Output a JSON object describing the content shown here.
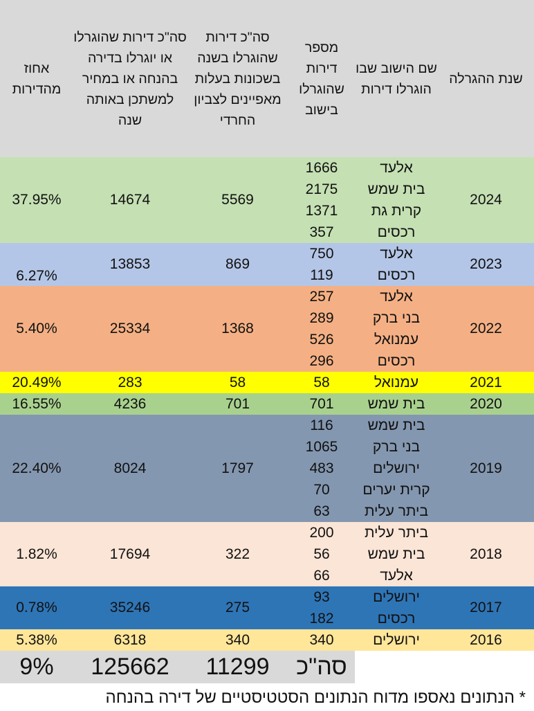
{
  "headers": {
    "year": "שנת ההגרלה",
    "city": "שם הישוב שבו הוגרלו דירות",
    "apartments": "מספר דירות שהוגרלו בישוב",
    "neighborhoods": "סה\"כ דירות שהוגרלו בשנה בשכונות בעלות מאפיינים לצביון החרדי",
    "total": "סה\"כ דירות שהוגרלו או יוגרלו בדירה בהנחה או במחיר למשתכן באותה שנה",
    "percent": "אחוז מהדירות"
  },
  "rows": [
    {
      "year": "2024",
      "cities": [
        "אלעד",
        "בית שמש",
        "קרית גת",
        "רכסים"
      ],
      "apartments": [
        "1666",
        "2175",
        "1371",
        "357"
      ],
      "neighborhoods": "5569",
      "total": "14674",
      "percent": "37.95%",
      "color": "#c5e0b3"
    },
    {
      "year": "2023",
      "cities": [
        "אלעד",
        "רכסים"
      ],
      "apartments": [
        "750",
        "119"
      ],
      "neighborhoods": "869",
      "total": "13853",
      "percent": "6.27%",
      "color": "#b4c6e7"
    },
    {
      "year": "2022",
      "cities": [
        "אלעד",
        "בני ברק",
        "עמנואל",
        "רכסים"
      ],
      "apartments": [
        "257",
        "289",
        "526",
        "296"
      ],
      "neighborhoods": "1368",
      "total": "25334",
      "percent": "5.40%",
      "color": "#f4b084"
    },
    {
      "year": "2021",
      "cities": [
        "עמנואל"
      ],
      "apartments": [
        "58"
      ],
      "neighborhoods": "58",
      "total": "283",
      "percent": "20.49%",
      "color": "#ffff00"
    },
    {
      "year": "2020",
      "cities": [
        "בית שמש"
      ],
      "apartments": [
        "701"
      ],
      "neighborhoods": "701",
      "total": "4236",
      "percent": "16.55%",
      "color": "#a9d18e"
    },
    {
      "year": "2019",
      "cities": [
        "בית שמש",
        "בני ברק",
        "ירושלים",
        "קרית יערים",
        "ביתר עלית"
      ],
      "apartments": [
        "116",
        "1065",
        "483",
        "70",
        "63"
      ],
      "neighborhoods": "1797",
      "total": "8024",
      "percent": "22.40%",
      "color": "#8497b0"
    },
    {
      "year": "2018",
      "cities": [
        "ביתר עלית",
        "בית שמש",
        "אלעד"
      ],
      "apartments": [
        "200",
        "56",
        "66"
      ],
      "neighborhoods": "322",
      "total": "17694",
      "percent": "1.82%",
      "color": "#fbe5d6"
    },
    {
      "year": "2017",
      "cities": [
        "ירושלים",
        "רכסים"
      ],
      "apartments": [
        "93",
        "182"
      ],
      "neighborhoods": "275",
      "total": "35246",
      "percent": "0.78%",
      "color": "#2e75b6"
    },
    {
      "year": "2016",
      "cities": [
        "ירושלים"
      ],
      "apartments": [
        "340"
      ],
      "neighborhoods": "340",
      "total": "6318",
      "percent": "5.38%",
      "color": "#ffe699"
    }
  ],
  "totals": {
    "label": "סה\"כ",
    "neighborhoods": "11299",
    "total": "125662",
    "percent": "9%"
  },
  "footnote": "* הנתונים נאספו מדוח הנתונים הסטטיסטיים של דירה בהנחה"
}
